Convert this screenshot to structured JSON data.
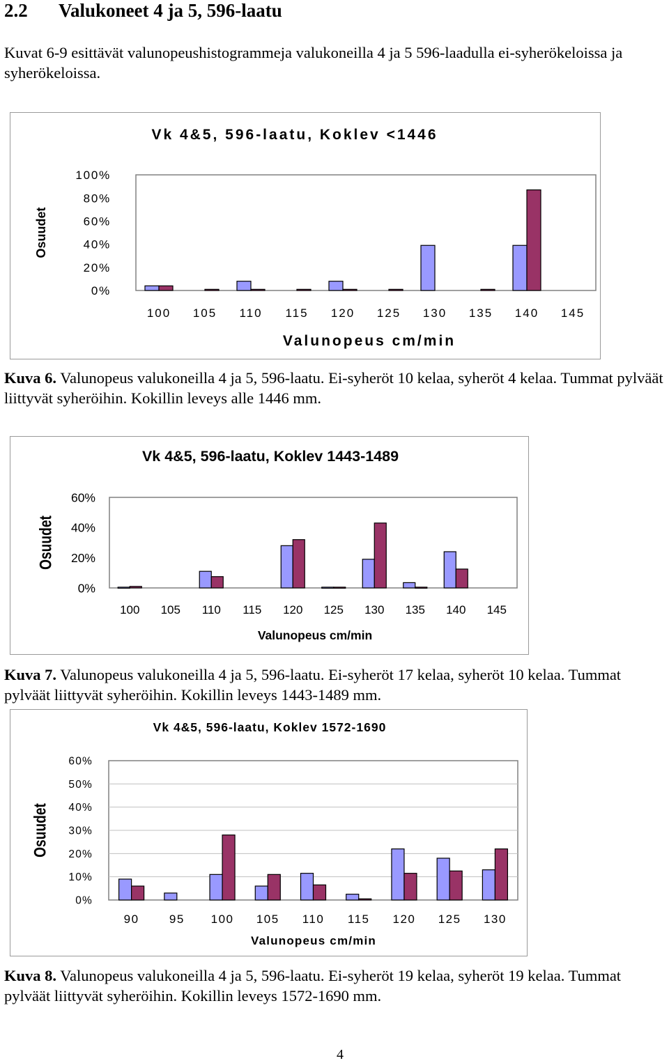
{
  "section": {
    "number": "2.2",
    "title": "Valukoneet 4 ja 5, 596-laatu"
  },
  "intro": "Kuvat 6-9 esittävät valunopeushistogrammeja valukoneilla 4  ja 5 596-laadulla ei-syherökeloissa ja syherökeloissa.",
  "colors": {
    "light": "#9999ff",
    "dark": "#993366",
    "grid": "#c0c0c0"
  },
  "captions": [
    {
      "label": "Kuva 6.",
      "text": " Valunopeus valukoneilla 4 ja 5, 596-laatu. Ei-syheröt 10 kelaa, syheröt 4 kelaa. Tummat pylväät liittyvät syheröihin. Kokillin leveys alle 1446 mm."
    },
    {
      "label": "Kuva 7.",
      "text": " Valunopeus valukoneilla 4 ja 5, 596-laatu. Ei-syheröt 17 kelaa, syheröt 10 kelaa. Tummat pylväät liittyvät syheröihin. Kokillin leveys 1443-1489 mm."
    },
    {
      "label": "Kuva 8.",
      "text": " Valunopeus valukoneilla 4 ja 5, 596-laatu. Ei-syheröt 19 kelaa, syheröt 19 kelaa. Tummat pylväät liittyvät syheröihin. Kokillin leveys 1572-1690 mm."
    }
  ],
  "page_number": "4",
  "chart_data": [
    {
      "type": "bar",
      "title": "Vk 4&5, 596-laatu, Koklev <1446",
      "xlabel": "Valunopeus cm/min",
      "ylabel": "Osuudet",
      "categories": [
        "100",
        "105",
        "110",
        "115",
        "120",
        "125",
        "130",
        "135",
        "140",
        "145"
      ],
      "yticks": [
        "0%",
        "20%",
        "40%",
        "60%",
        "80%",
        "100%"
      ],
      "ylim": [
        0,
        100
      ],
      "grid": false,
      "series": [
        {
          "values": [
            4,
            0,
            8,
            0,
            8,
            0,
            39,
            0,
            39,
            0
          ]
        },
        {
          "values": [
            4,
            1,
            1,
            1,
            1,
            1,
            0,
            1,
            87,
            0
          ]
        }
      ]
    },
    {
      "type": "bar",
      "title": "Vk 4&5, 596-laatu, Koklev 1443-1489",
      "xlabel": "Valunopeus cm/min",
      "ylabel": "Osuudet",
      "categories": [
        "100",
        "105",
        "110",
        "115",
        "120",
        "125",
        "130",
        "135",
        "140",
        "145"
      ],
      "yticks": [
        "0%",
        "20%",
        "40%",
        "60%"
      ],
      "ylim": [
        0,
        60
      ],
      "grid": false,
      "series": [
        {
          "values": [
            0.5,
            0,
            11,
            0,
            28,
            0.5,
            19,
            3.5,
            24,
            0
          ]
        },
        {
          "values": [
            1,
            0,
            7.5,
            0,
            32,
            0.5,
            43,
            0.5,
            12.5,
            0
          ]
        }
      ]
    },
    {
      "type": "bar",
      "title": "Vk 4&5, 596-laatu, Koklev 1572-1690",
      "xlabel": "Valunopeus cm/min",
      "ylabel": "Osuudet",
      "categories": [
        "90",
        "95",
        "100",
        "105",
        "110",
        "115",
        "120",
        "125",
        "130"
      ],
      "yticks": [
        "0%",
        "10%",
        "20%",
        "30%",
        "40%",
        "50%",
        "60%"
      ],
      "ylim": [
        0,
        60
      ],
      "grid": true,
      "series": [
        {
          "values": [
            9,
            3,
            11,
            6,
            11.5,
            2.5,
            22,
            18,
            13
          ]
        },
        {
          "values": [
            6,
            0,
            28,
            11,
            6.5,
            0.5,
            11.5,
            12.5,
            22
          ]
        }
      ]
    }
  ]
}
